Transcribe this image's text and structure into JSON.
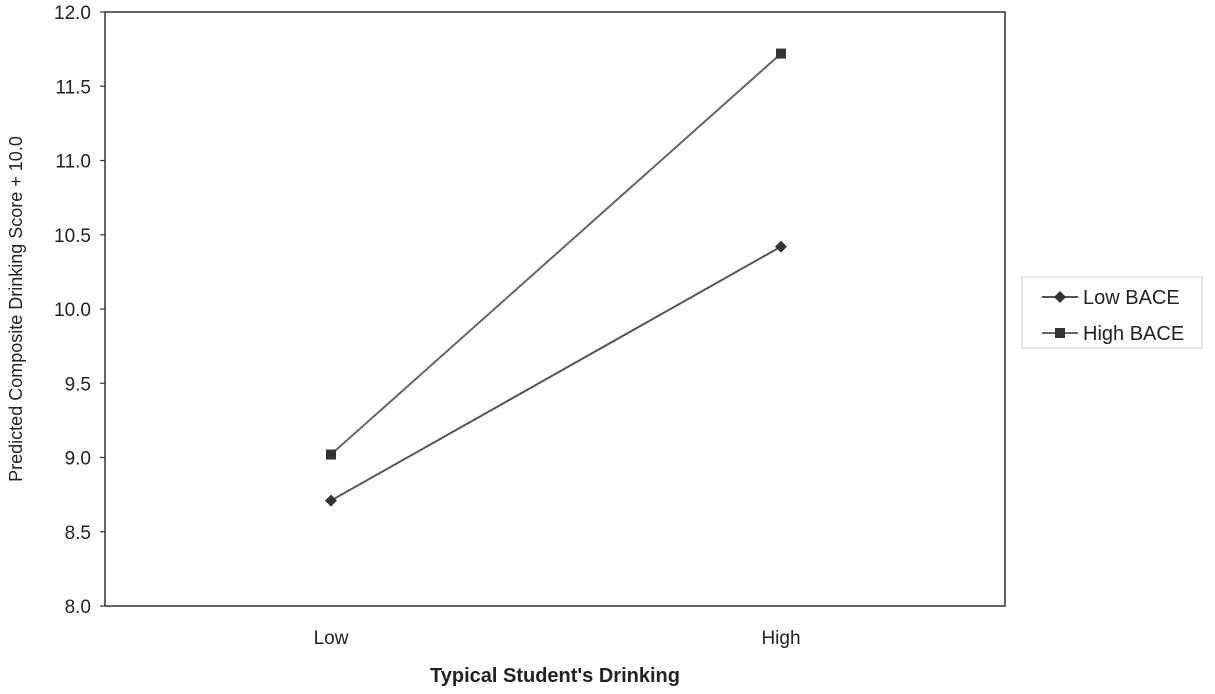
{
  "chart_data": {
    "type": "line",
    "title": "",
    "xlabel": "Typical Student's Drinking",
    "ylabel": "Predicted Composite Drinking Score + 10.0",
    "categories": [
      "Low",
      "High"
    ],
    "ylim": [
      8.0,
      12.0
    ],
    "yticks": [
      "8.0",
      "8.5",
      "9.0",
      "9.5",
      "10.0",
      "10.5",
      "11.0",
      "11.5",
      "12.0"
    ],
    "grid": false,
    "legend_position": "right",
    "series": [
      {
        "name": "Low BACE",
        "marker": "diamond",
        "values": [
          8.71,
          10.42
        ],
        "color": "#555555"
      },
      {
        "name": "High BACE",
        "marker": "square",
        "values": [
          9.02,
          11.72
        ],
        "color": "#666666"
      }
    ]
  }
}
